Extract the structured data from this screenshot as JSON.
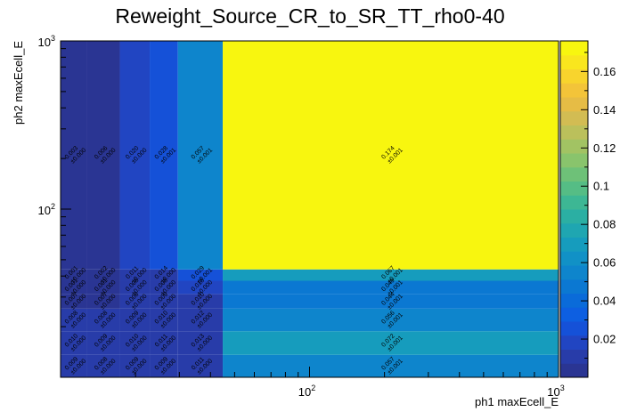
{
  "chart_data": {
    "type": "heatmap",
    "title": "Reweight_Source_CR_to_SR_TT_rho0-40",
    "xlabel": "ph1 maxEcell_E",
    "ylabel": "ph2 maxEcell_E",
    "x_scale": "log",
    "y_scale": "log",
    "xlim": [
      10,
      1000
    ],
    "ylim": [
      10,
      1000
    ],
    "x_edges": [
      10,
      12.8,
      17.3,
      22.8,
      29.6,
      44.8,
      1000
    ],
    "y_edges": [
      10,
      13.6,
      18.8,
      25.6,
      31.3,
      37.5,
      43.8,
      1000
    ],
    "x_ticks": [
      {
        "value": 100,
        "base": "10",
        "exp": "2"
      },
      {
        "value": 1000,
        "base": "10",
        "exp": "3"
      }
    ],
    "y_ticks": [
      {
        "value": 100,
        "base": "10",
        "exp": "2"
      },
      {
        "value": 1000,
        "base": "10",
        "exp": "3"
      }
    ],
    "colorbar": {
      "min": 0,
      "max": 0.176,
      "ticks": [
        "0.02",
        "0.04",
        "0.06",
        "0.08",
        "0.1",
        "0.12",
        "0.14",
        "0.16"
      ],
      "tick_values": [
        0.02,
        0.04,
        0.06,
        0.08,
        0.1,
        0.12,
        0.14,
        0.16
      ]
    },
    "colors": [
      "#2a3593",
      "#283ca9",
      "#2145c2",
      "#1551d8",
      "#0d5fe1",
      "#0a6bd9",
      "#0b78d2",
      "#0e85cc",
      "#1191c6",
      "#169cbd",
      "#1fa6b1",
      "#2bafa3",
      "#3db794",
      "#55bd85",
      "#6ec178",
      "#89c46c",
      "#a2c363",
      "#bbc05b",
      "#d2bc53",
      "#e6bc45",
      "#f3c439",
      "#f8d42d",
      "#f9e61e",
      "#f8f60f"
    ],
    "cells": [
      {
        "ix": 0,
        "iy": 0,
        "v": 0.009,
        "label": "0.009",
        "err": "±0.000"
      },
      {
        "ix": 1,
        "iy": 0,
        "v": 0.008,
        "label": "0.008",
        "err": "±0.000"
      },
      {
        "ix": 2,
        "iy": 0,
        "v": 0.009,
        "label": "0.009",
        "err": "±0.000"
      },
      {
        "ix": 3,
        "iy": 0,
        "v": 0.009,
        "label": "0.009",
        "err": "±0.000"
      },
      {
        "ix": 4,
        "iy": 0,
        "v": 0.011,
        "label": "0.011",
        "err": "±0.000"
      },
      {
        "ix": 5,
        "iy": 0,
        "v": 0.057,
        "label": "0.057",
        "err": "±0.001"
      },
      {
        "ix": 0,
        "iy": 1,
        "v": 0.01,
        "label": "0.010",
        "err": "±0.000"
      },
      {
        "ix": 1,
        "iy": 1,
        "v": 0.009,
        "label": "0.009",
        "err": "±0.000"
      },
      {
        "ix": 2,
        "iy": 1,
        "v": 0.01,
        "label": "0.010",
        "err": "±0.000"
      },
      {
        "ix": 3,
        "iy": 1,
        "v": 0.011,
        "label": "0.011",
        "err": "±0.000"
      },
      {
        "ix": 4,
        "iy": 1,
        "v": 0.013,
        "label": "0.013",
        "err": "±0.000"
      },
      {
        "ix": 5,
        "iy": 1,
        "v": 0.072,
        "label": "0.072",
        "err": "±0.001"
      },
      {
        "ix": 0,
        "iy": 2,
        "v": 0.008,
        "label": "0.008",
        "err": "±0.000"
      },
      {
        "ix": 1,
        "iy": 2,
        "v": 0.008,
        "label": "0.008",
        "err": "±0.000"
      },
      {
        "ix": 2,
        "iy": 2,
        "v": 0.009,
        "label": "0.009",
        "err": "±0.000"
      },
      {
        "ix": 3,
        "iy": 2,
        "v": 0.01,
        "label": "0.010",
        "err": "±0.000"
      },
      {
        "ix": 4,
        "iy": 2,
        "v": 0.012,
        "label": "0.012",
        "err": "±0.000"
      },
      {
        "ix": 5,
        "iy": 2,
        "v": 0.056,
        "label": "0.056",
        "err": "±0.001"
      },
      {
        "ix": 0,
        "iy": 3,
        "v": 0.007,
        "label": "0.007",
        "err": "±0.000"
      },
      {
        "ix": 1,
        "iy": 3,
        "v": 0.007,
        "label": "0.007",
        "err": "±0.000"
      },
      {
        "ix": 2,
        "iy": 3,
        "v": 0.008,
        "label": "0.008",
        "err": "±0.000"
      },
      {
        "ix": 3,
        "iy": 3,
        "v": 0.009,
        "label": "0.009",
        "err": "±0.000"
      },
      {
        "ix": 4,
        "iy": 3,
        "v": 0.01,
        "label": "0.010",
        "err": "±0.000"
      },
      {
        "ix": 5,
        "iy": 3,
        "v": 0.044,
        "label": "0.044",
        "err": "±0.001"
      },
      {
        "ix": 0,
        "iy": 4,
        "v": 0.001,
        "label": "0.001",
        "err": "±0.000"
      },
      {
        "ix": 1,
        "iy": 4,
        "v": 0.001,
        "label": "0.001",
        "err": "±0.000"
      },
      {
        "ix": 2,
        "iy": 4,
        "v": 0.008,
        "label": "0.008",
        "err": "±0.000"
      },
      {
        "ix": 3,
        "iy": 4,
        "v": 0.008,
        "label": "0.008",
        "err": "±0.000"
      },
      {
        "ix": 4,
        "iy": 4,
        "v": 0.018,
        "label": "0.018",
        "err": "±0.000"
      },
      {
        "ix": 5,
        "iy": 4,
        "v": 0.049,
        "label": "0.049",
        "err": "±0.001"
      },
      {
        "ix": 0,
        "iy": 5,
        "v": 0.001,
        "label": "0.001",
        "err": "±0.000"
      },
      {
        "ix": 1,
        "iy": 5,
        "v": 0.002,
        "label": "0.002",
        "err": "±0.000"
      },
      {
        "ix": 2,
        "iy": 5,
        "v": 0.011,
        "label": "0.011",
        "err": "±0.000"
      },
      {
        "ix": 3,
        "iy": 5,
        "v": 0.014,
        "label": "0.014",
        "err": "±0.000"
      },
      {
        "ix": 4,
        "iy": 5,
        "v": 0.029,
        "label": "0.029",
        "err": "±0.001"
      },
      {
        "ix": 5,
        "iy": 5,
        "v": 0.067,
        "label": "0.067",
        "err": "±0.001"
      },
      {
        "ix": 0,
        "iy": 6,
        "v": 0.003,
        "label": "0.003",
        "err": "±0.000"
      },
      {
        "ix": 1,
        "iy": 6,
        "v": 0.006,
        "label": "0.006",
        "err": "±0.000"
      },
      {
        "ix": 2,
        "iy": 6,
        "v": 0.02,
        "label": "0.020",
        "err": "±0.000"
      },
      {
        "ix": 3,
        "iy": 6,
        "v": 0.028,
        "label": "0.028",
        "err": "±0.001"
      },
      {
        "ix": 4,
        "iy": 6,
        "v": 0.057,
        "label": "0.057",
        "err": "±0.001"
      },
      {
        "ix": 5,
        "iy": 6,
        "v": 0.174,
        "label": "0.174",
        "err": "±0.001"
      }
    ]
  }
}
